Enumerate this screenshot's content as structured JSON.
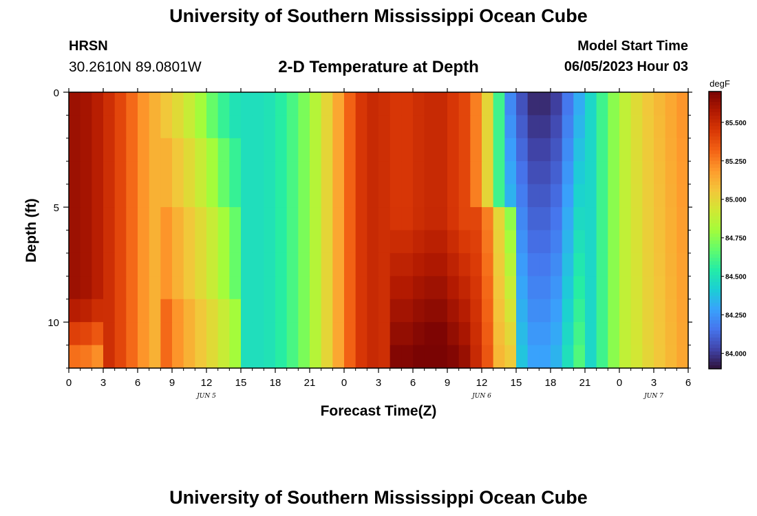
{
  "header": {
    "title": "University of Southern Mississippi Ocean Cube",
    "station": "HRSN",
    "coords": "30.2610N  89.0801W",
    "subtitle": "2-D Temperature at Depth",
    "model_start_label": "Model Start Time",
    "model_start_value": "06/05/2023 Hour 03"
  },
  "footer": {
    "title": "University of Southern Mississippi Ocean Cube"
  },
  "colors": {
    "scale": [
      "#30123b",
      "#4145ab",
      "#4675ed",
      "#39a2fc",
      "#1bcfd4",
      "#24eca6",
      "#61fc6c",
      "#a4fc3b",
      "#d1e834",
      "#f3c63a",
      "#fe9b2d",
      "#f36315",
      "#d93806",
      "#b11901",
      "#7a0403"
    ]
  },
  "chart_data": {
    "type": "heatmap",
    "title": "2-D Temperature at Depth",
    "xlabel": "Forecast Time(Z)",
    "ylabel": "Depth (ft)",
    "x_ticks": [
      "0",
      "3",
      "6",
      "9",
      "12",
      "15",
      "18",
      "21",
      "0",
      "3",
      "6",
      "9",
      "12",
      "15",
      "18",
      "21",
      "0",
      "3",
      "6"
    ],
    "x_range_hours": [
      0,
      54
    ],
    "y_ticks": [
      "0",
      "5",
      "10"
    ],
    "y_range_ft": [
      0,
      12
    ],
    "date_labels": [
      {
        "label": "JUN 5",
        "hour": 12
      },
      {
        "label": "JUN 6",
        "hour": 36
      },
      {
        "label": "JUN 7",
        "hour": 51
      }
    ],
    "colorbar": {
      "unit": "degF",
      "min": 83.9,
      "max": 85.7,
      "ticks": [
        "85.500",
        "85.250",
        "85.000",
        "84.750",
        "84.500",
        "84.250",
        "84.000"
      ],
      "tick_values": [
        85.5,
        85.25,
        85.0,
        84.75,
        84.5,
        84.25,
        84.0
      ]
    },
    "series_description": "Surface temperature by forecast hour, with modifiers for depth",
    "surface_temps_by_hour": [
      85.62,
      85.6,
      85.55,
      85.48,
      85.4,
      85.3,
      85.2,
      85.12,
      85.05,
      84.98,
      84.9,
      84.8,
      84.68,
      84.58,
      84.5,
      84.48,
      84.48,
      84.5,
      84.55,
      84.62,
      84.72,
      84.85,
      85.0,
      85.15,
      85.32,
      85.45,
      85.5,
      85.48,
      85.45,
      85.45,
      85.48,
      85.5,
      85.5,
      85.45,
      85.4,
      85.25,
      85.0,
      84.6,
      84.2,
      84.05,
      83.95,
      83.95,
      84.0,
      84.15,
      84.3,
      84.45,
      84.6,
      84.75,
      84.88,
      84.98,
      85.05,
      85.1,
      85.15,
      85.2,
      85.25
    ],
    "transitions": {
      "warm_to_cool_day1_hour_surface": 10,
      "warm_to_cool_day1_hour_bottom": 14,
      "cool_to_warm_day1_hour": 21,
      "warm_to_cool_day2_hour": 37,
      "cool_to_warm_day2_hour": 47
    }
  }
}
